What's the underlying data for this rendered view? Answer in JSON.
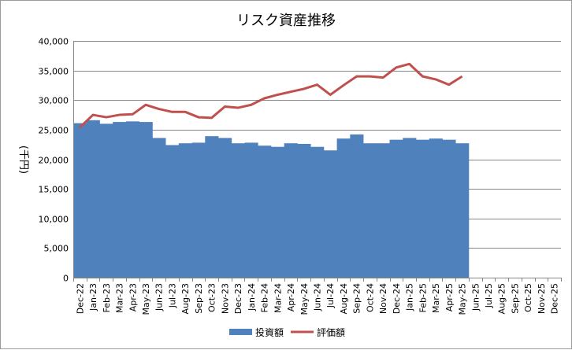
{
  "chart_data": {
    "type": "bar",
    "title": "リスク資産推移",
    "ylabel": "(千円)",
    "xlabel": "",
    "ylim": [
      0,
      40000
    ],
    "yticks": [
      "0",
      "5,000",
      "10,000",
      "15,000",
      "20,000",
      "25,000",
      "30,000",
      "35,000",
      "40,000"
    ],
    "grid": true,
    "legend_position": "bottom",
    "categories": [
      "Dec-22",
      "Jan-23",
      "Feb-23",
      "Mar-23",
      "Apr-23",
      "May-23",
      "Jun-23",
      "Jul-23",
      "Aug-23",
      "Sep-23",
      "Oct-23",
      "Nov-23",
      "Dec-23",
      "Jan-24",
      "Feb-24",
      "Mar-24",
      "Apr-24",
      "May-24",
      "Jun-24",
      "Jul-24",
      "Aug-24",
      "Sep-24",
      "Oct-24",
      "Nov-24",
      "Dec-24",
      "Jan-25",
      "Feb-25",
      "Mar-25",
      "Apr-25",
      "May-25",
      "Jun-25",
      "Jul-25",
      "Aug-25",
      "Sep-25",
      "Oct-25",
      "Nov-25",
      "Dec-25"
    ],
    "series": [
      {
        "name": "投資額",
        "type": "bar",
        "color": "#4f81bd",
        "values": [
          26100,
          26600,
          26000,
          26300,
          26400,
          26300,
          23600,
          22400,
          22700,
          22800,
          23900,
          23600,
          22700,
          22800,
          22300,
          22100,
          22700,
          22600,
          22100,
          21500,
          23500,
          24200,
          22700,
          22700,
          23300,
          23600,
          23300,
          23500,
          23300,
          22700,
          null,
          null,
          null,
          null,
          null,
          null,
          null
        ]
      },
      {
        "name": "評価額",
        "type": "line",
        "color": "#c0504d",
        "values": [
          25400,
          27500,
          27100,
          27500,
          27600,
          29200,
          28500,
          28000,
          28000,
          27100,
          27000,
          28900,
          28700,
          29200,
          30300,
          30900,
          31400,
          31900,
          32600,
          30900,
          32500,
          34000,
          34000,
          33800,
          35500,
          36100,
          34000,
          33500,
          32600,
          34000,
          null,
          null,
          null,
          null,
          null,
          null,
          null
        ]
      }
    ]
  }
}
